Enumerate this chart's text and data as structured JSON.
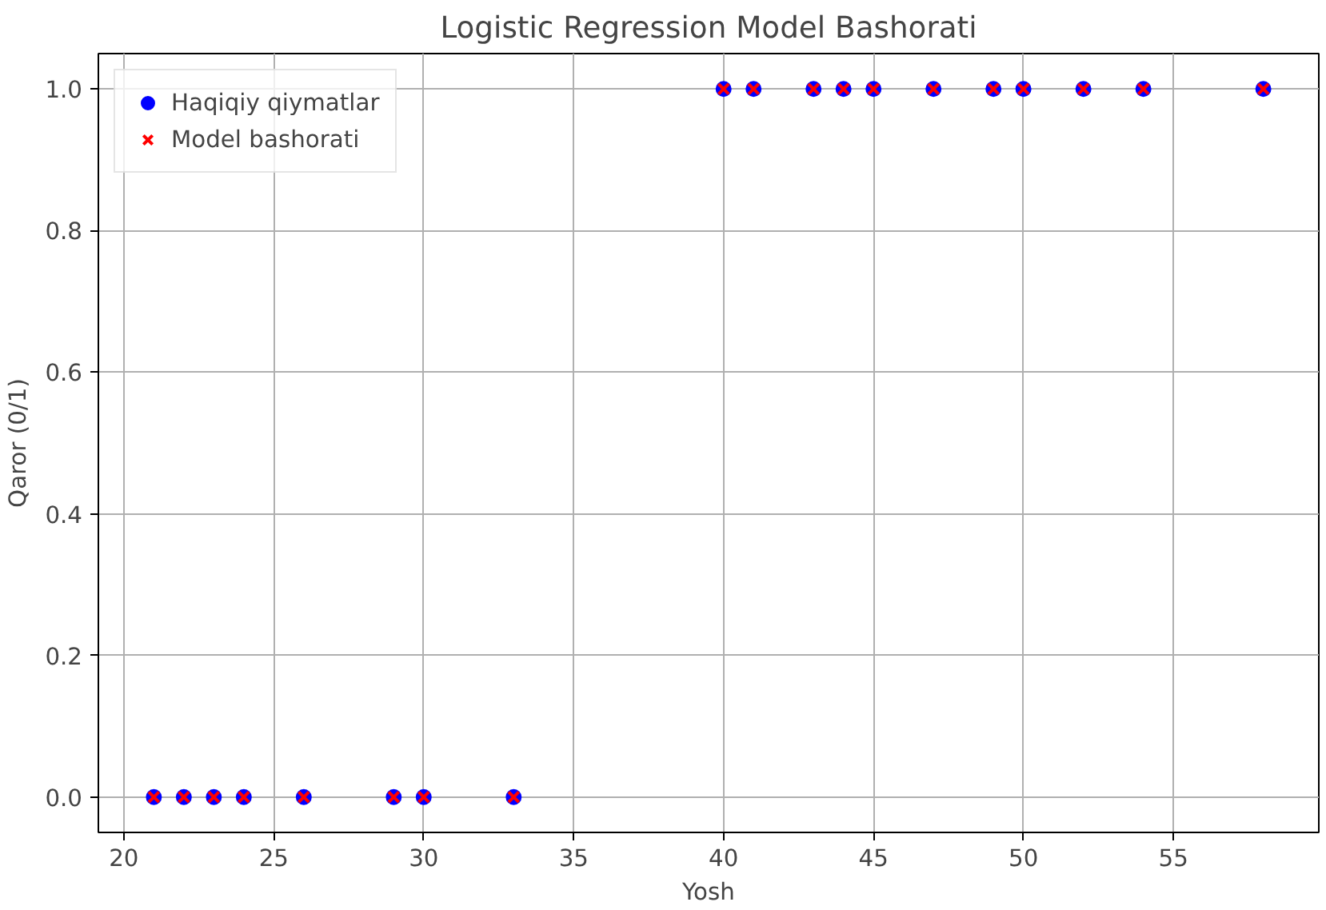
{
  "chart_data": {
    "type": "scatter",
    "title": "Logistic Regression Model Bashorati",
    "xlabel": "Yosh",
    "ylabel": "Qaror (0/1)",
    "x": [
      21,
      22,
      23,
      24,
      26,
      29,
      30,
      33,
      40,
      41,
      43,
      44,
      45,
      47,
      49,
      50,
      52,
      54,
      58
    ],
    "series": [
      {
        "name": "Haqiqiy qiymatlar",
        "color": "#0000ff",
        "marker": "circle",
        "values": [
          0,
          0,
          0,
          0,
          0,
          0,
          0,
          0,
          1,
          1,
          1,
          1,
          1,
          1,
          1,
          1,
          1,
          1,
          1
        ]
      },
      {
        "name": "Model bashorati",
        "color": "#ff0000",
        "marker": "cross",
        "values": [
          0,
          0,
          0,
          0,
          0,
          0,
          0,
          0,
          1,
          1,
          1,
          1,
          1,
          1,
          1,
          1,
          1,
          1,
          1
        ]
      }
    ],
    "xlim": [
      19.15,
      59.85
    ],
    "ylim": [
      -0.05,
      1.05
    ],
    "xticks": [
      20,
      25,
      30,
      35,
      40,
      45,
      50,
      55
    ],
    "yticks": [
      {
        "value": 0,
        "label": "0.0"
      },
      {
        "value": 0.2,
        "label": "0.2"
      },
      {
        "value": 0.4,
        "label": "0.4"
      },
      {
        "value": 0.6,
        "label": "0.6"
      },
      {
        "value": 0.8,
        "label": "0.8"
      },
      {
        "value": 1,
        "label": "1.0"
      }
    ],
    "grid": true,
    "legend": "top left"
  }
}
